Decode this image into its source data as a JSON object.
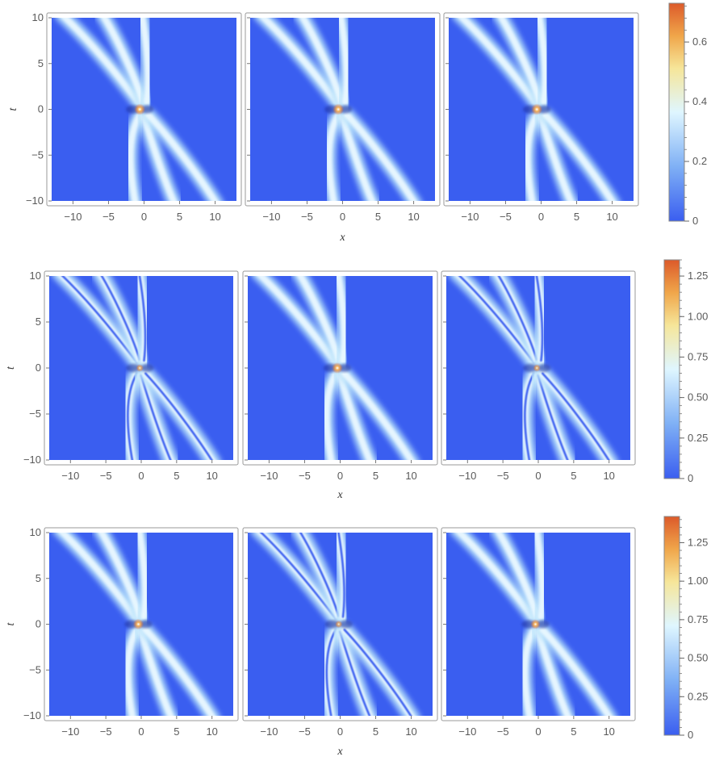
{
  "chart_data": [
    {
      "type": "heatmap",
      "row": 1,
      "ylabel": "t",
      "xlabel": "x",
      "x_ticks": [
        "−10",
        "−5",
        "0",
        "5",
        "10"
      ],
      "x_tick_values": [
        -10,
        -5,
        0,
        5,
        10
      ],
      "y_ticks": [
        "10",
        "5",
        "0",
        "−5",
        "−10"
      ],
      "y_tick_values": [
        10,
        5,
        0,
        -5,
        -10
      ],
      "xlim": [
        -13,
        13
      ],
      "ylim": [
        -10,
        10
      ],
      "colorbar": {
        "ticks": [
          "0",
          "0.2",
          "0.4",
          "0.6"
        ],
        "tick_values": [
          0,
          0.2,
          0.4,
          0.6
        ],
        "range": [
          0,
          0.73
        ]
      },
      "panels": [
        {
          "peak": 0.73,
          "peak_x": -0.6,
          "mode": "smooth"
        },
        {
          "peak": 0.73,
          "peak_x": -0.6,
          "mode": "smooth"
        },
        {
          "peak": 0.73,
          "peak_x": -0.6,
          "mode": "smooth"
        }
      ]
    },
    {
      "type": "heatmap",
      "row": 2,
      "ylabel": "t",
      "xlabel": "x",
      "x_ticks": [
        "−10",
        "−5",
        "0",
        "5",
        "10"
      ],
      "x_tick_values": [
        -10,
        -5,
        0,
        5,
        10
      ],
      "y_ticks": [
        "10",
        "5",
        "0",
        "−5",
        "−10"
      ],
      "y_tick_values": [
        10,
        5,
        0,
        -5,
        -10
      ],
      "xlim": [
        -13,
        13
      ],
      "ylim": [
        -10,
        10
      ],
      "colorbar": {
        "ticks": [
          "0",
          "0.25",
          "0.50",
          "0.75",
          "1.00",
          "1.25"
        ],
        "tick_values": [
          0,
          0.25,
          0.5,
          0.75,
          1.0,
          1.25
        ],
        "range": [
          0,
          1.35
        ]
      },
      "panels": [
        {
          "peak": 0.6,
          "peak_x": -0.2,
          "mode": "split"
        },
        {
          "peak": 1.3,
          "peak_x": -0.4,
          "mode": "smooth"
        },
        {
          "peak": 0.6,
          "peak_x": -0.2,
          "mode": "split"
        }
      ]
    },
    {
      "type": "heatmap",
      "row": 3,
      "ylabel": "t",
      "xlabel": "x",
      "x_ticks": [
        "−10",
        "−5",
        "0",
        "5",
        "10"
      ],
      "x_tick_values": [
        -10,
        -5,
        0,
        5,
        10
      ],
      "y_ticks": [
        "10",
        "5",
        "0",
        "−5",
        "−10"
      ],
      "y_tick_values": [
        10,
        5,
        0,
        -5,
        -10
      ],
      "xlim": [
        -13,
        13
      ],
      "ylim": [
        -10,
        10
      ],
      "colorbar": {
        "ticks": [
          "0",
          "0.25",
          "0.50",
          "0.75",
          "1.00",
          "1.25"
        ],
        "tick_values": [
          0,
          0.25,
          0.5,
          0.75,
          1.0,
          1.25
        ],
        "range": [
          0,
          1.42
        ]
      },
      "panels": [
        {
          "peak": 1.3,
          "peak_x": -0.4,
          "mode": "smooth"
        },
        {
          "peak": 0.6,
          "peak_x": -0.2,
          "mode": "split"
        },
        {
          "peak": 1.1,
          "peak_x": -0.4,
          "mode": "smooth"
        }
      ]
    }
  ]
}
